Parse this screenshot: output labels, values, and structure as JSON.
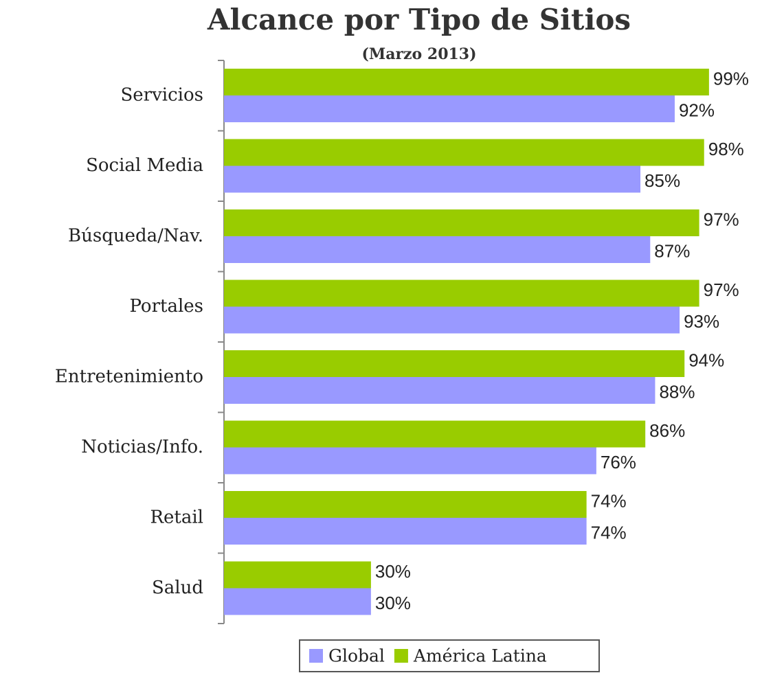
{
  "chart_data": {
    "type": "barh",
    "title": "Alcance por Tipo de Sitios",
    "subtitle": "(Marzo 2013)",
    "categories": [
      "Servicios",
      "Social Media",
      "Búsqueda/Nav.",
      "Portales",
      "Entretenimiento",
      "Noticias/Info.",
      "Retail",
      "Salud"
    ],
    "series": [
      {
        "name": "Global",
        "color": "#9999ff",
        "values": [
          92,
          85,
          87,
          93,
          88,
          76,
          74,
          30
        ],
        "value_labels": [
          "92%",
          "85%",
          "87%",
          "93%",
          "88%",
          "76%",
          "74%",
          "30%"
        ]
      },
      {
        "name": "América Latina",
        "color": "#99cc00",
        "values": [
          99,
          98,
          97,
          97,
          94,
          86,
          74,
          30
        ],
        "value_labels": [
          "99%",
          "98%",
          "97%",
          "97%",
          "94%",
          "86%",
          "74%",
          "30%"
        ]
      }
    ],
    "xlim": [
      0,
      100
    ],
    "legend": "bottom"
  }
}
